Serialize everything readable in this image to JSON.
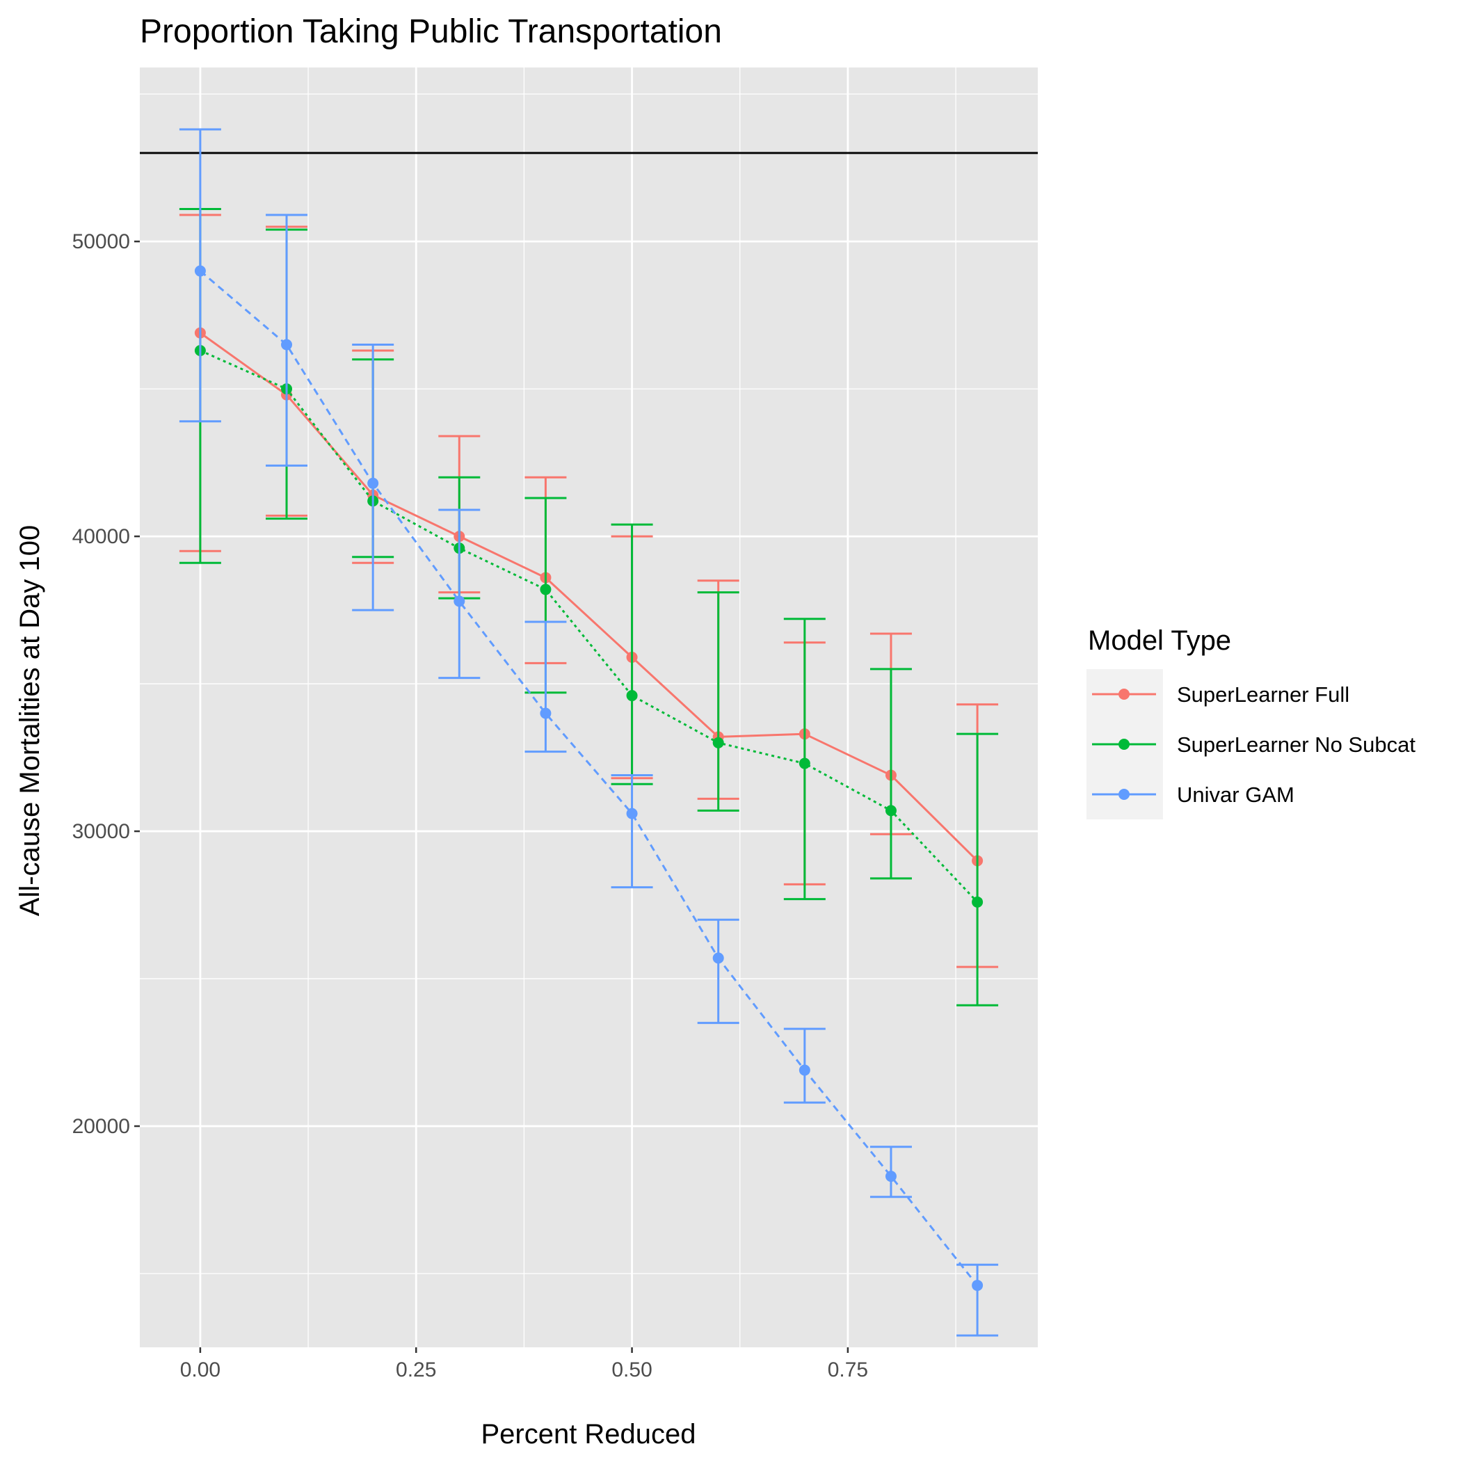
{
  "chart_data": {
    "type": "line",
    "title": "Proportion Taking Public Transportation",
    "xlabel": "Percent Reduced",
    "ylabel": "All-cause Mortalities at Day 100",
    "xlim": [
      -0.07,
      0.97
    ],
    "ylim": [
      12500,
      55900
    ],
    "x_ticks": [
      0.0,
      0.25,
      0.5,
      0.75
    ],
    "x_tick_labels": [
      "0.00",
      "0.25",
      "0.50",
      "0.75"
    ],
    "y_ticks": [
      20000,
      30000,
      40000,
      50000
    ],
    "y_tick_labels": [
      "20000",
      "30000",
      "40000",
      "50000"
    ],
    "grid": true,
    "legend_placement": "right",
    "reference_line_y": 53000,
    "reference_line_color": "#000000",
    "panel_background": "#e6e6e6",
    "legend": {
      "title": "Model Type"
    },
    "x": [
      0.0,
      0.1,
      0.2,
      0.3,
      0.4,
      0.5,
      0.6,
      0.7,
      0.8,
      0.9
    ],
    "series": [
      {
        "name": "SuperLearner Full",
        "color": "#f8766d",
        "linestyle": "solid",
        "values": [
          46900,
          44800,
          41400,
          40000,
          38600,
          35900,
          33200,
          33300,
          31900,
          29000
        ],
        "lower": [
          39500,
          40700,
          39100,
          38100,
          35700,
          31800,
          31100,
          28200,
          29900,
          25400
        ],
        "upper": [
          50900,
          50500,
          46300,
          43400,
          42000,
          40000,
          38500,
          36400,
          36700,
          34300
        ]
      },
      {
        "name": "SuperLearner No Subcat",
        "color": "#00ba38",
        "linestyle": "dotted",
        "values": [
          46300,
          45000,
          41200,
          39600,
          38200,
          34600,
          33000,
          32300,
          30700,
          27600
        ],
        "lower": [
          39100,
          40600,
          39300,
          37900,
          34700,
          31600,
          30700,
          27700,
          28400,
          24100
        ],
        "upper": [
          51100,
          50400,
          46000,
          42000,
          41300,
          40400,
          38100,
          37200,
          35500,
          33300
        ]
      },
      {
        "name": "Univar GAM",
        "color": "#619cff",
        "linestyle": "dashed",
        "values": [
          49000,
          46500,
          41800,
          37800,
          34000,
          30600,
          25700,
          21900,
          18300,
          14600
        ],
        "lower": [
          43900,
          42400,
          37500,
          35200,
          32700,
          28100,
          23500,
          20800,
          17600,
          12900
        ],
        "upper": [
          53800,
          50900,
          46500,
          40900,
          37100,
          31900,
          27000,
          23300,
          19300,
          15300
        ]
      }
    ]
  }
}
